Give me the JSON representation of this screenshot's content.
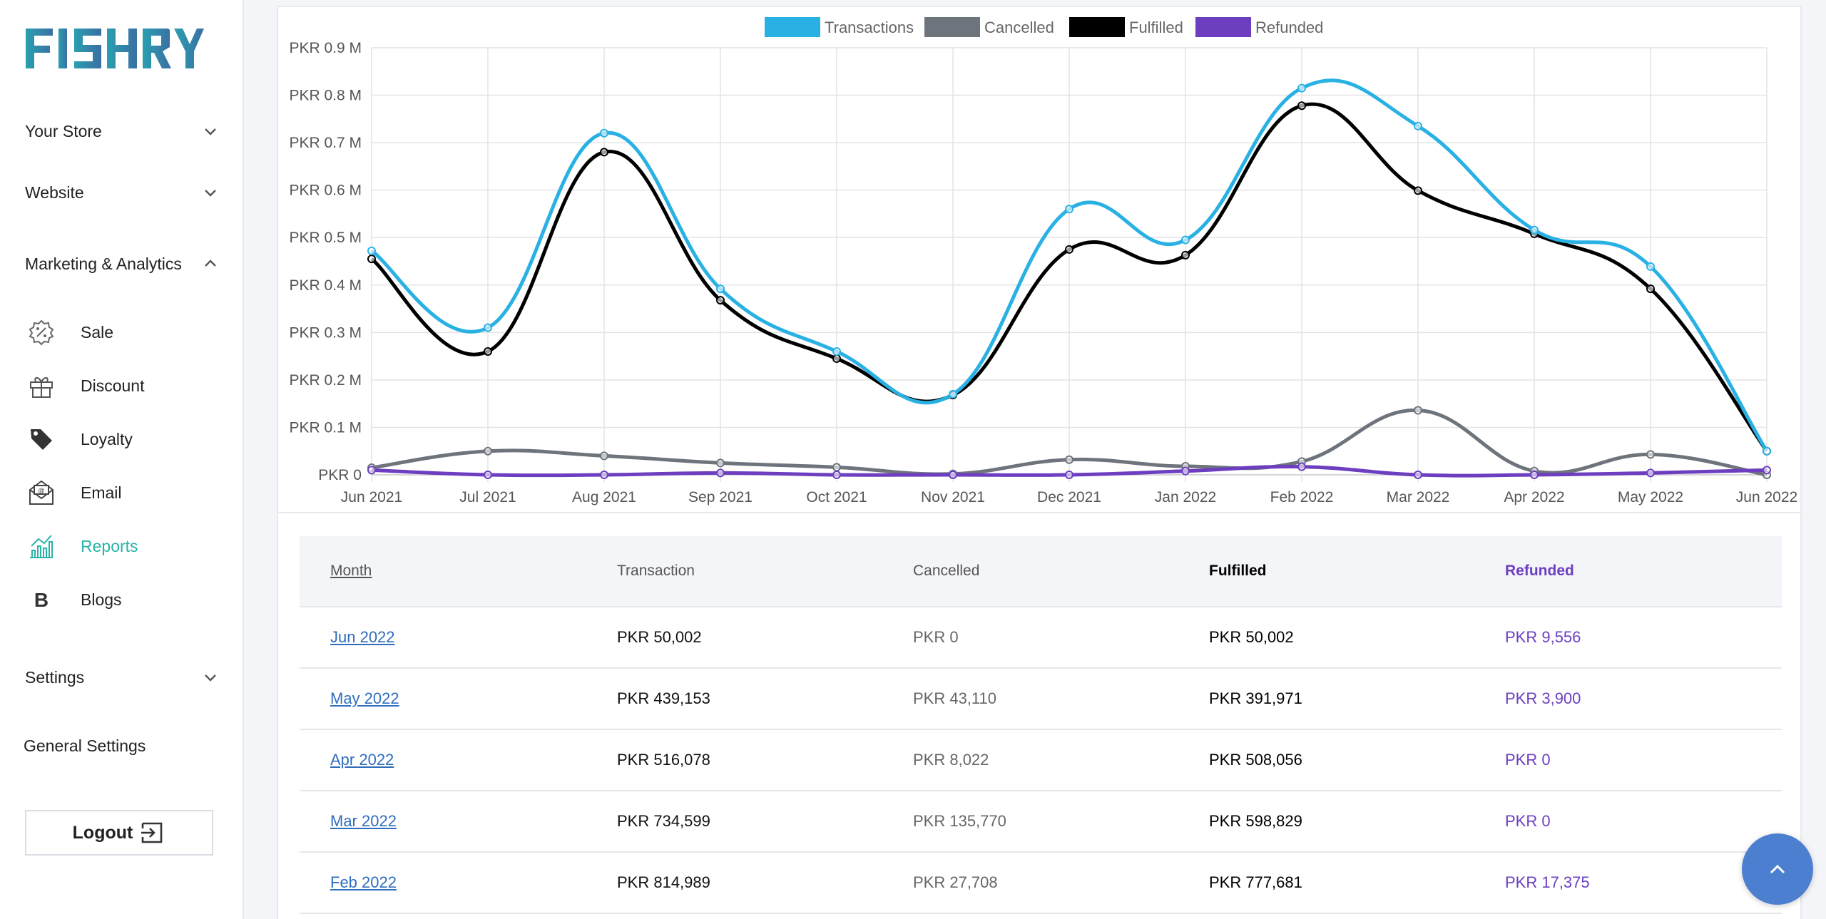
{
  "brand": {
    "logo_text": "FISHRY"
  },
  "sidebar": {
    "sections": [
      {
        "label": "Your Store",
        "expanded": false
      },
      {
        "label": "Website",
        "expanded": false
      },
      {
        "label": "Marketing & Analytics",
        "expanded": true
      },
      {
        "label": "Settings",
        "expanded": false
      }
    ],
    "items": [
      {
        "label": "Sale",
        "icon": "sale-badge-icon"
      },
      {
        "label": "Discount",
        "icon": "gift-icon"
      },
      {
        "label": "Loyalty",
        "icon": "tag-icon"
      },
      {
        "label": "Email",
        "icon": "email-icon"
      },
      {
        "label": "Reports",
        "icon": "chart-icon",
        "active": true
      },
      {
        "label": "Blogs",
        "icon": "blog-icon"
      }
    ],
    "general_settings": "General Settings",
    "logout": "Logout",
    "accent_color": "#2ab3a6"
  },
  "chart_data": {
    "type": "line",
    "categories": [
      "Jun 2021",
      "Jul 2021",
      "Aug 2021",
      "Sep 2021",
      "Oct 2021",
      "Nov 2021",
      "Dec 2021",
      "Jan 2022",
      "Feb 2022",
      "Mar 2022",
      "Apr 2022",
      "May 2022",
      "Jun 2022"
    ],
    "y_ticks": [
      "PKR 0",
      "PKR 0.1 M",
      "PKR 0.2 M",
      "PKR 0.3 M",
      "PKR 0.4 M",
      "PKR 0.5 M",
      "PKR 0.6 M",
      "PKR 0.7 M",
      "PKR 0.8 M",
      "PKR 0.9 M"
    ],
    "ylim": [
      0,
      0.9
    ],
    "legend_position": "top",
    "grid": true,
    "series": [
      {
        "name": "Transactions",
        "color": "#29b1e4",
        "values": [
          0.472,
          0.31,
          0.72,
          0.392,
          0.26,
          0.17,
          0.56,
          0.495,
          0.815,
          0.735,
          0.516,
          0.439,
          0.05
        ]
      },
      {
        "name": "Cancelled",
        "color": "#6e747c",
        "values": [
          0.015,
          0.05,
          0.04,
          0.025,
          0.016,
          0.002,
          0.032,
          0.018,
          0.028,
          0.136,
          0.008,
          0.043,
          0.0
        ]
      },
      {
        "name": "Fulfilled",
        "color": "#000000",
        "values": [
          0.455,
          0.26,
          0.68,
          0.368,
          0.245,
          0.168,
          0.475,
          0.463,
          0.778,
          0.599,
          0.508,
          0.392,
          0.05
        ]
      },
      {
        "name": "Refunded",
        "color": "#6d3fc0",
        "values": [
          0.01,
          0.0,
          0.0,
          0.004,
          0.0,
          0.0,
          0.0,
          0.008,
          0.017,
          0.0,
          0.0,
          0.004,
          0.01
        ]
      }
    ]
  },
  "table": {
    "headers": [
      "Month",
      "Transaction",
      "Cancelled",
      "Fulfilled",
      "Refunded"
    ],
    "rows": [
      [
        "Jun 2022",
        "PKR 50,002",
        "PKR 0",
        "PKR 50,002",
        "PKR 9,556"
      ],
      [
        "May 2022",
        "PKR 439,153",
        "PKR 43,110",
        "PKR 391,971",
        "PKR 3,900"
      ],
      [
        "Apr 2022",
        "PKR 516,078",
        "PKR 8,022",
        "PKR 508,056",
        "PKR 0"
      ],
      [
        "Mar 2022",
        "PKR 734,599",
        "PKR 135,770",
        "PKR 598,829",
        "PKR 0"
      ],
      [
        "Feb 2022",
        "PKR 814,989",
        "PKR 27,708",
        "PKR 777,681",
        "PKR 17,375"
      ]
    ]
  },
  "scroll_top_icon": "chevron-up-icon"
}
